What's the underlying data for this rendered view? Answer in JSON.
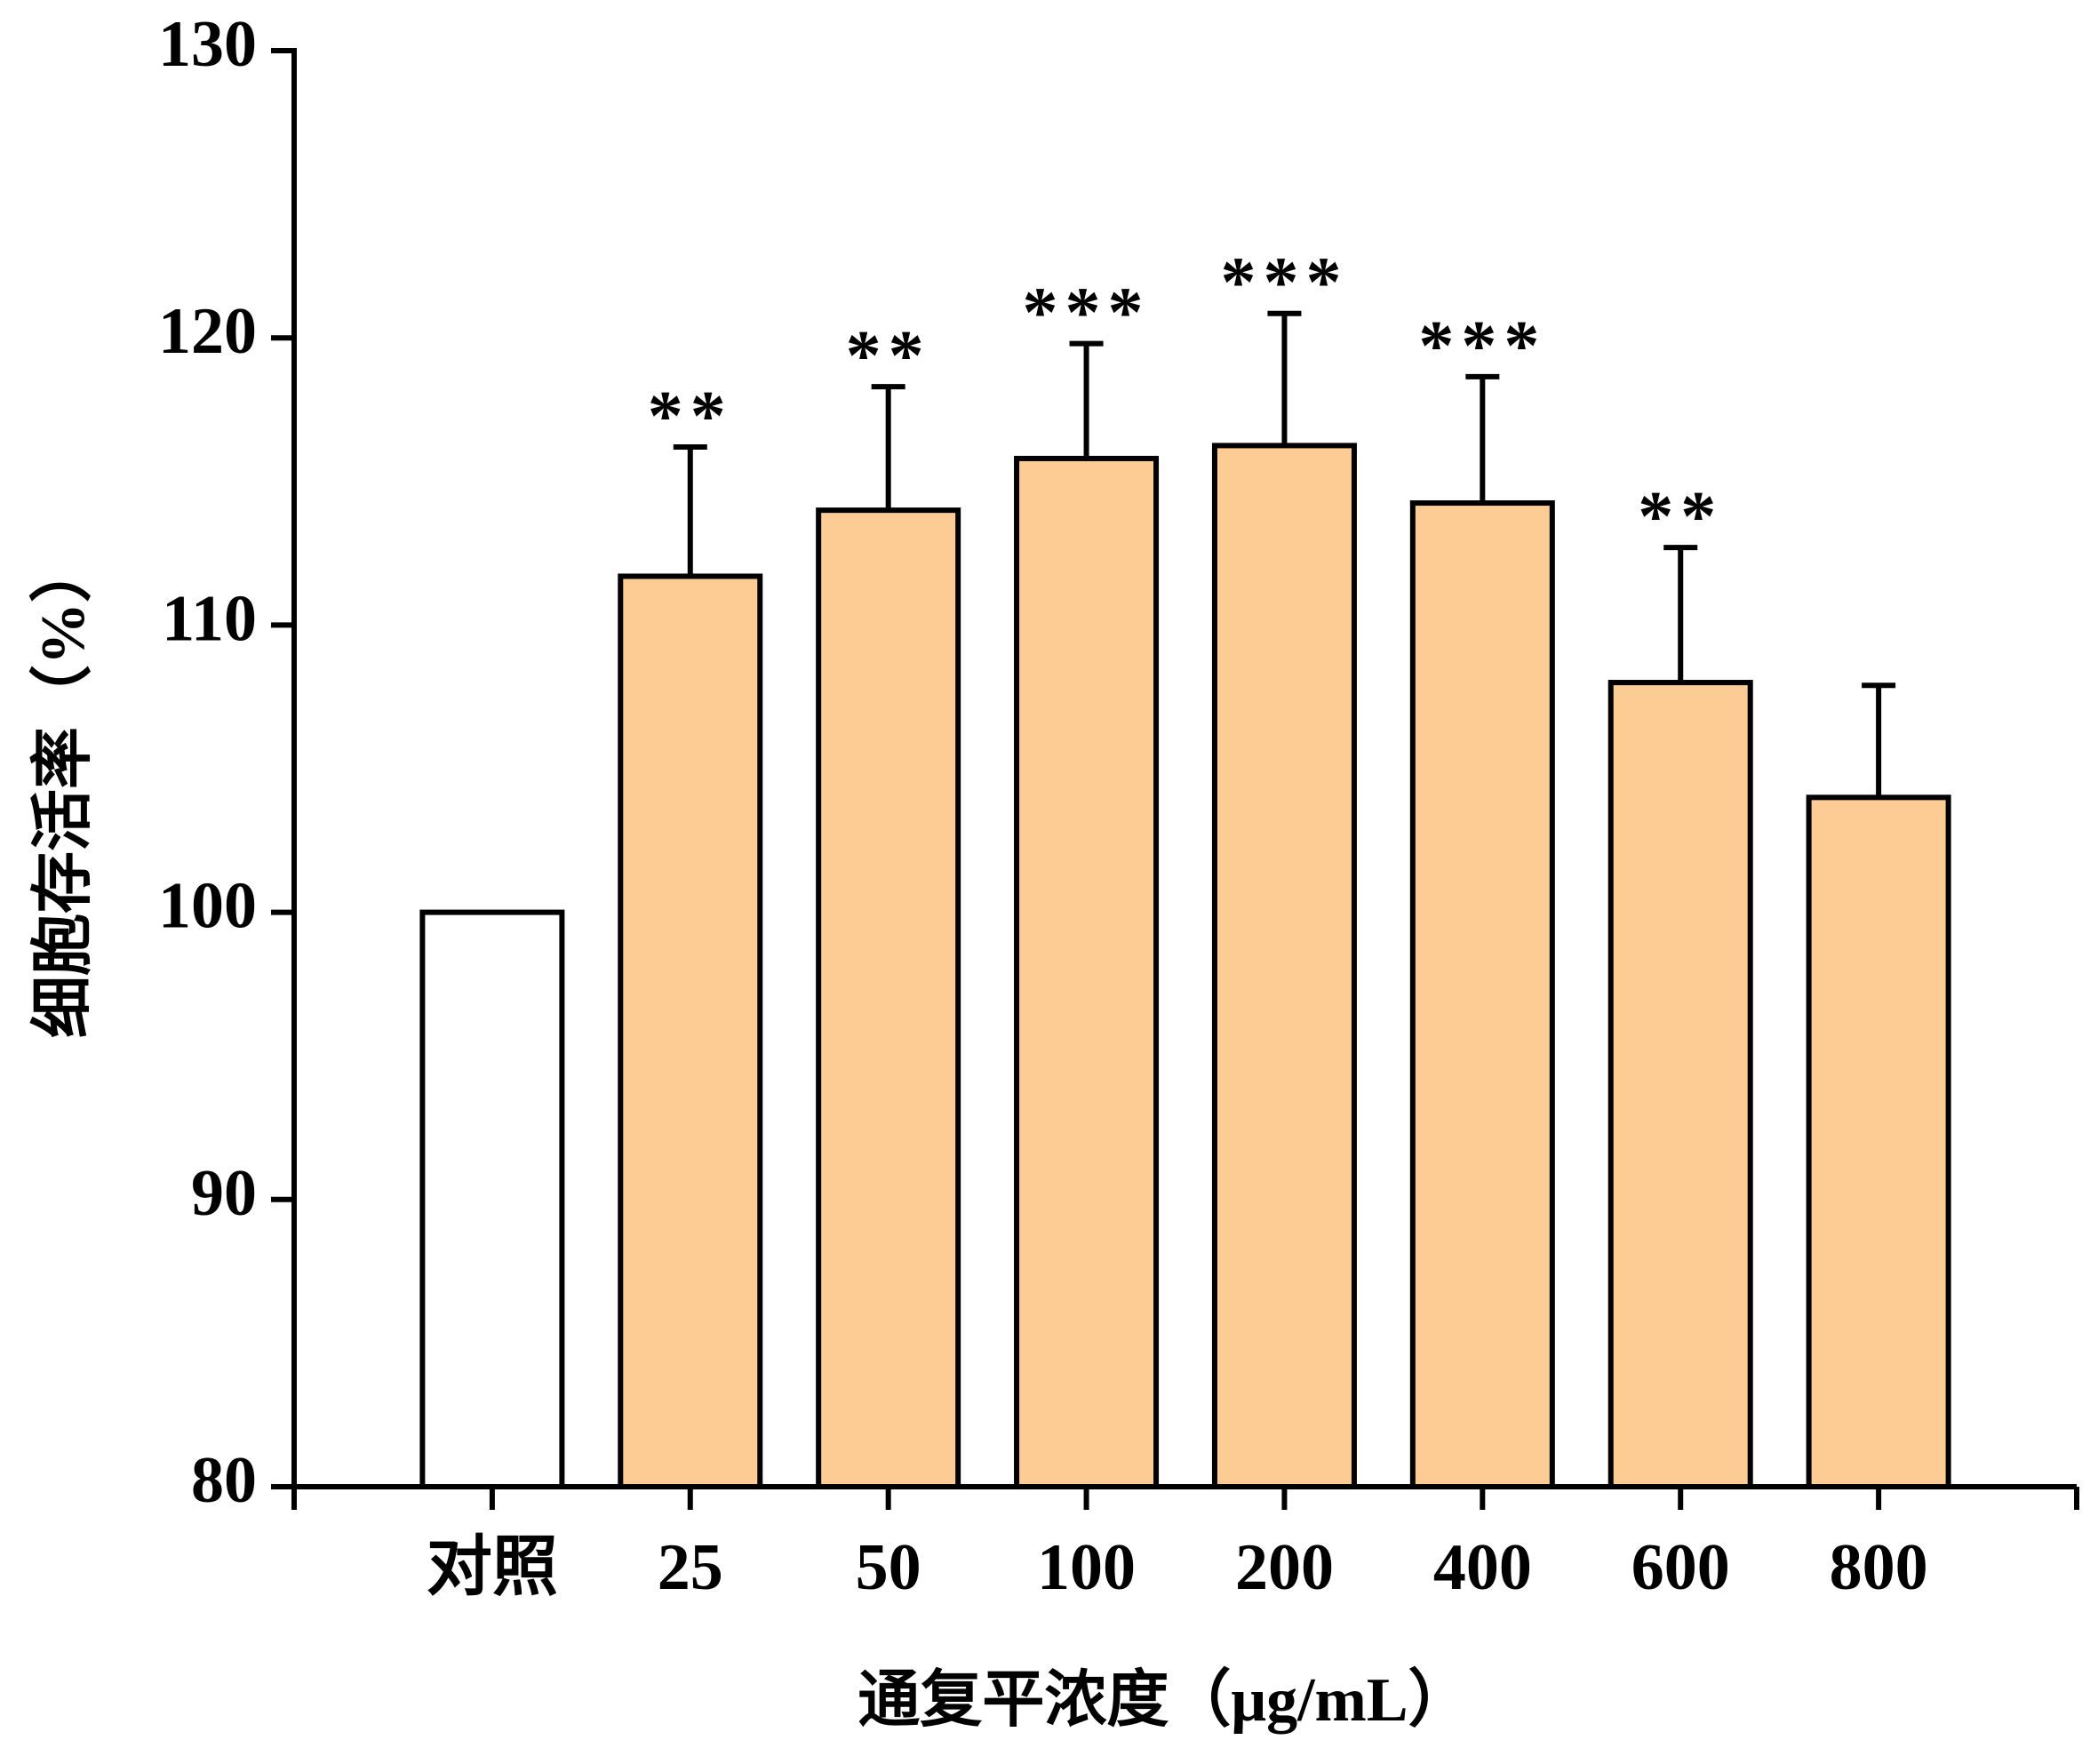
{
  "chart_data": {
    "type": "bar",
    "x_label": "通复平浓度（μg/mL）",
    "y_label": "细胞存活率（%）",
    "categories": [
      "对照",
      "25",
      "50",
      "100",
      "200",
      "400",
      "600",
      "800"
    ],
    "values": [
      100,
      111.7,
      114.0,
      115.8,
      116.25,
      114.25,
      108.0,
      104.0
    ],
    "errors": [
      null,
      4.5,
      4.3,
      4.0,
      4.6,
      4.4,
      4.7,
      3.9
    ],
    "annotations": [
      null,
      "**",
      "**",
      "***",
      "***",
      "***",
      "**",
      null
    ],
    "colors": [
      "#ffffff",
      "#fdcc94",
      "#fdcc94",
      "#fdcc94",
      "#fdcc94",
      "#fdcc94",
      "#fdcc94",
      "#fdcc94"
    ],
    "ylim": [
      80,
      130
    ],
    "yticks": [
      80,
      90,
      100,
      110,
      120,
      130
    ]
  }
}
